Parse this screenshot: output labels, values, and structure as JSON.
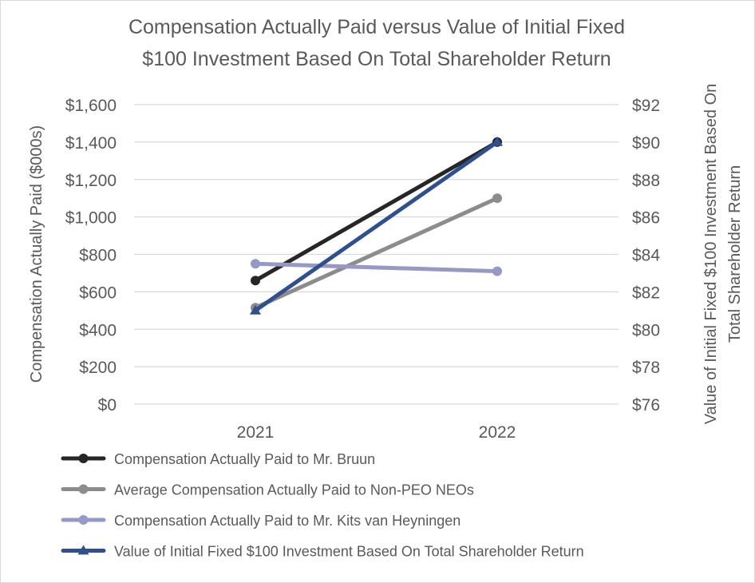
{
  "chart_data": {
    "type": "line",
    "title_lines": [
      "Compensation Actually Paid versus Value of Initial Fixed",
      "$100 Investment Based On Total Shareholder Return"
    ],
    "categories": [
      "2021",
      "2022"
    ],
    "y_left": {
      "label": "Compensation Actually Paid ($000s)",
      "ylim": [
        0,
        1600
      ],
      "ticks": [
        0,
        200,
        400,
        600,
        800,
        1000,
        1200,
        1400,
        1600
      ],
      "tick_labels": [
        "$0",
        "$200",
        "$400",
        "$600",
        "$800",
        "$1,000",
        "$1,200",
        "$1,400",
        "$1,600"
      ]
    },
    "y_right": {
      "label_lines": [
        "Value of Initial Fixed $100 Investment Based On",
        "Total Shareholder Return"
      ],
      "ylim": [
        76,
        92
      ],
      "ticks": [
        76,
        78,
        80,
        82,
        84,
        86,
        88,
        90,
        92
      ],
      "tick_labels": [
        "$76",
        "$78",
        "$80",
        "$82",
        "$84",
        "$86",
        "$88",
        "$90",
        "$92"
      ]
    },
    "series": [
      {
        "name": "Compensation Actually Paid to Mr. Bruun",
        "axis": "left",
        "marker": "circle",
        "color": "#262626",
        "values": [
          660,
          1400
        ]
      },
      {
        "name": "Average Compensation Actually Paid to Non-PEO NEOs",
        "axis": "left",
        "marker": "circle",
        "color": "#8c8c8c",
        "values": [
          515,
          1100
        ]
      },
      {
        "name": "Compensation Actually Paid to Mr. Kits van Heyningen",
        "axis": "left",
        "marker": "circle",
        "color": "#9499c5",
        "values": [
          750,
          710
        ]
      },
      {
        "name": "Value of Initial Fixed $100 Investment Based On Total Shareholder Return",
        "axis": "right",
        "marker": "triangle",
        "color": "#2f4f8f",
        "values": [
          81,
          90
        ]
      }
    ],
    "grid": true,
    "legend": "bottom"
  }
}
